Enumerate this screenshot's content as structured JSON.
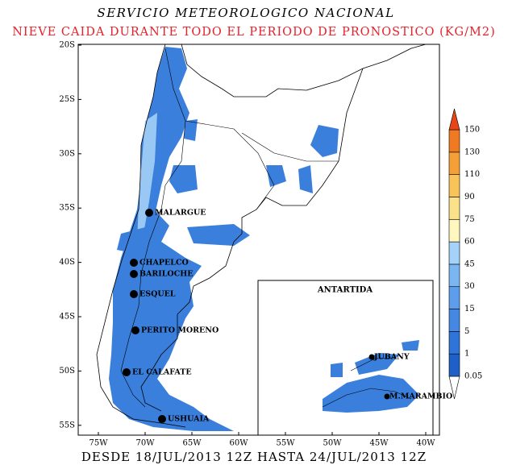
{
  "header": {
    "title": "SERVICIO METEOROLOGICO NACIONAL",
    "subtitle": "NIEVE CAIDA DURANTE TODO EL PERIODO DE PRONOSTICO (KG/M2)"
  },
  "map": {
    "lat_ticks": [
      "20S",
      "25S",
      "30S",
      "35S",
      "40S",
      "45S",
      "50S",
      "55S"
    ],
    "lon_ticks": [
      "75W",
      "70W",
      "65W",
      "60W",
      "55W",
      "50W",
      "45W",
      "40W"
    ],
    "cities": [
      "MALARGUE",
      "CHAPELCO",
      "BARILOCHE",
      "ESQUEL",
      "PERITO MORENO",
      "EL CALAFATE",
      "USHUAIA"
    ]
  },
  "inset": {
    "title": "ANTARTIDA",
    "stations": [
      "JUBANY",
      "M.MARAMBIO"
    ]
  },
  "colorbar": {
    "levels": [
      0.05,
      1,
      5,
      15,
      30,
      45,
      60,
      75,
      90,
      110,
      130,
      150
    ],
    "colors": [
      "#ffffff",
      "#1f5fc8",
      "#2f74d8",
      "#4488e4",
      "#5c9eec",
      "#7ab6f2",
      "#a4d2f8",
      "#fff6c0",
      "#fbe28a",
      "#f8c45a",
      "#f5a036",
      "#f07a22",
      "#e6461a"
    ]
  },
  "footer": "DESDE 18/JUL/2013 12Z HASTA 24/JUL/2013 12Z"
}
